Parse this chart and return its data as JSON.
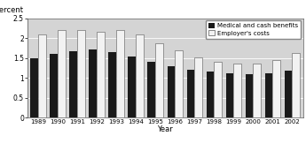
{
  "years": [
    "1989",
    "1990",
    "1991",
    "1992",
    "1993",
    "1994",
    "1995",
    "1996",
    "1997",
    "1998",
    "1999",
    "2000",
    "2001",
    "2002"
  ],
  "medical_cash": [
    1.49,
    1.6,
    1.68,
    1.71,
    1.64,
    1.54,
    1.4,
    1.29,
    1.21,
    1.15,
    1.12,
    1.1,
    1.11,
    1.19
  ],
  "employer_costs": [
    2.08,
    2.21,
    2.2,
    2.15,
    2.2,
    2.08,
    1.87,
    1.7,
    1.52,
    1.41,
    1.36,
    1.36,
    1.44,
    1.62
  ],
  "bar_color_black": "#1a1a1a",
  "bar_color_white": "#f2f2f2",
  "bar_edge_color": "#555555",
  "ylabel": "Percent",
  "xlabel": "Year",
  "ylim": [
    0,
    2.5
  ],
  "yticks": [
    0,
    0.5,
    1.0,
    1.5,
    2.0,
    2.5
  ],
  "legend_labels": [
    "Medical and cash benefits",
    "Employer's costs"
  ],
  "background_color": "#d4d4d4",
  "fig_background": "#ffffff"
}
